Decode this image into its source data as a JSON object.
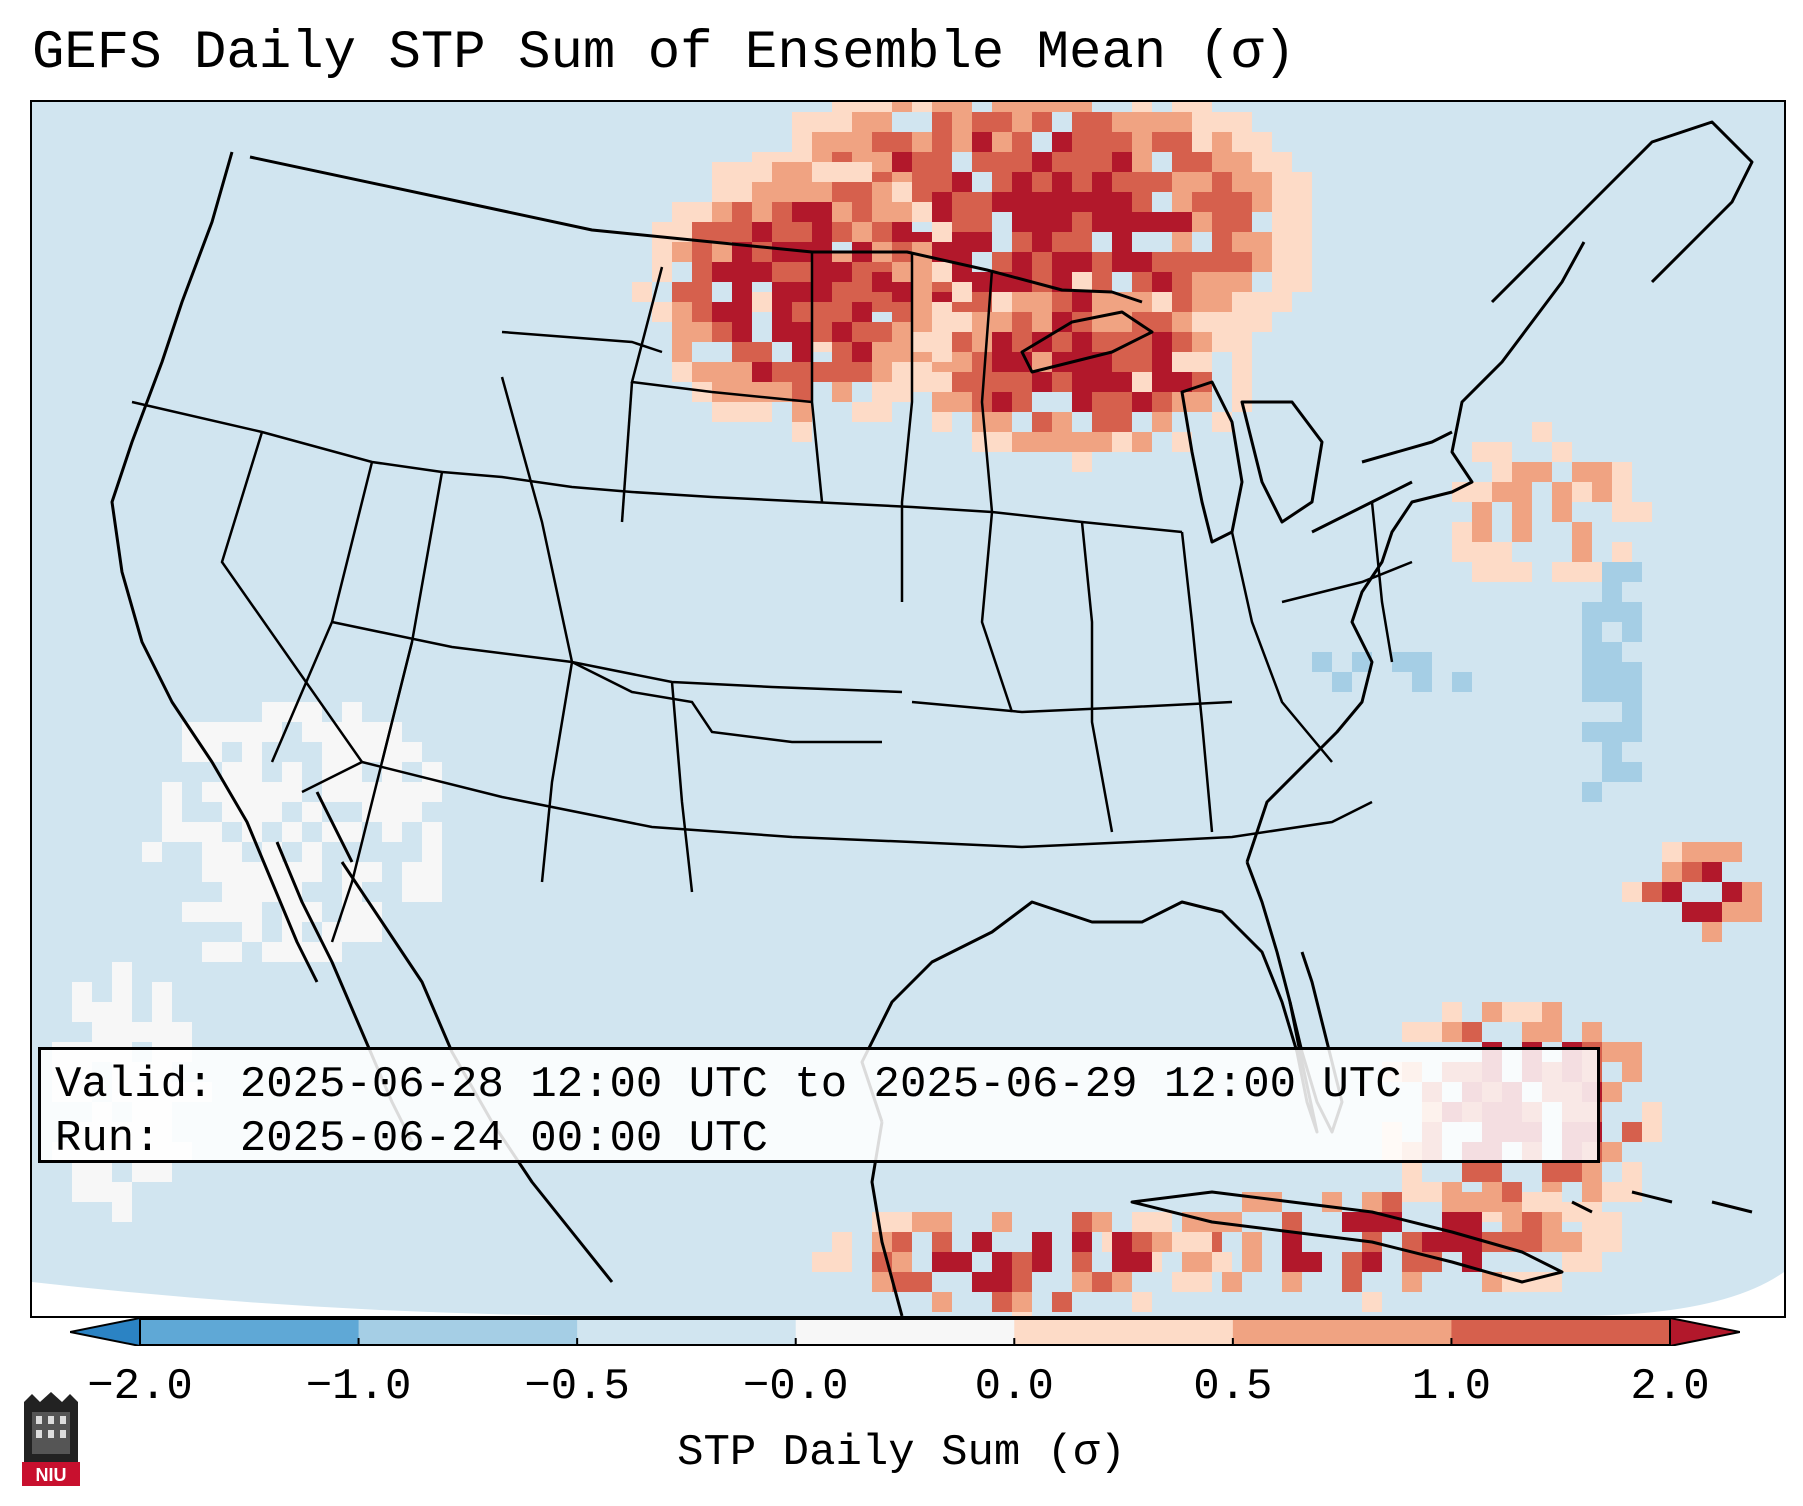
{
  "title": "GEFS Daily STP Sum of Ensemble Mean (σ)",
  "info": {
    "valid_label": "Valid:",
    "valid_value": "2025-06-28 12:00 UTC to 2025-06-29 12:00 UTC",
    "run_label": "Run:",
    "run_value": "2025-06-24 00:00 UTC"
  },
  "colorbar": {
    "label": "STP Daily Sum (σ)",
    "ticks": [
      "−2.0",
      "−1.0",
      "−0.5",
      "−0.0",
      "0.0",
      "0.5",
      "1.0",
      "2.0"
    ],
    "colors": [
      "#2b83c4",
      "#5fa8d6",
      "#a5cee5",
      "#d1e5f0",
      "#f7f7f7",
      "#fddbc7",
      "#f0a382",
      "#d6604d",
      "#b2182b"
    ]
  },
  "logo": {
    "text": "NIU",
    "color": "#c8102e"
  },
  "map": {
    "land_bg": "#d1e5f0",
    "offgrid_bg": "#ffffff",
    "anomaly_regions": [
      {
        "region": "Dakotas / Minnesota / Ontario",
        "category": "+1.0 to +2.0"
      },
      {
        "region": "Upper Midwest / Lake Superior",
        "category": "+0.5 to +1.0"
      },
      {
        "region": "New England / New York",
        "category": "0.0 to +0.5"
      },
      {
        "region": "Florida / Cuba",
        "category": "+1.0 to +2.0"
      },
      {
        "region": "Desert Southwest / Baja",
        "category": "-0.0 to 0.0"
      },
      {
        "region": "Atlantic coast (Mid-Atlantic)",
        "category": "-1.0 to -0.5"
      }
    ]
  }
}
